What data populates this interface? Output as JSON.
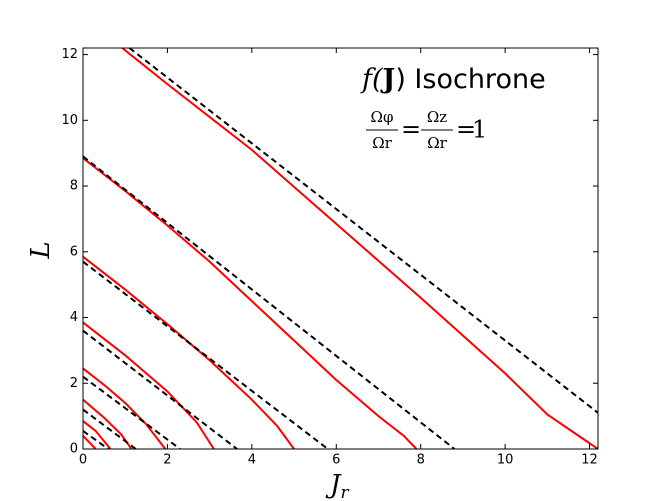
{
  "chart_data": {
    "type": "line",
    "annotation": {
      "title_main": "f(",
      "title_bold": "J",
      "title_rest": ") Isochrone",
      "numerators": [
        "Ωφ",
        "Ωz"
      ],
      "denominators": [
        "Ωr",
        "Ωr"
      ],
      "equals": "=",
      "rhs": "1"
    },
    "xlabel": {
      "main": "J",
      "sub": "r"
    },
    "ylabel": "L",
    "xlim": [
      0,
      12.2
    ],
    "ylim": [
      0,
      12.2
    ],
    "xticks": [
      0,
      2,
      4,
      6,
      8,
      10,
      12
    ],
    "yticks": [
      0,
      2,
      4,
      6,
      8,
      10,
      12
    ],
    "grid": false,
    "series": [
      {
        "color": "#ff0000",
        "style": "solid",
        "x": [
          0.93,
          2,
          4,
          6,
          8,
          10,
          11,
          11.8,
          12.2
        ],
        "values": [
          12.2,
          11.1,
          9.1,
          6.85,
          4.6,
          2.3,
          1.05,
          0.35,
          0
        ]
      },
      {
        "color": "#ff0000",
        "style": "solid",
        "x": [
          0,
          1,
          2,
          3,
          4,
          5,
          6,
          7,
          7.6,
          7.9
        ],
        "values": [
          8.85,
          7.85,
          6.8,
          5.7,
          4.5,
          3.3,
          2.1,
          1.0,
          0.4,
          0
        ]
      },
      {
        "color": "#ff0000",
        "style": "solid",
        "x": [
          0,
          1,
          2,
          3,
          4,
          4.6,
          5.0
        ],
        "values": [
          5.85,
          4.85,
          3.8,
          2.7,
          1.5,
          0.7,
          0
        ]
      },
      {
        "color": "#ff0000",
        "style": "solid",
        "x": [
          0,
          1,
          2,
          2.7,
          3.1
        ],
        "values": [
          3.85,
          2.85,
          1.75,
          0.8,
          0
        ]
      },
      {
        "color": "#ff0000",
        "style": "solid",
        "x": [
          0,
          0.5,
          1,
          1.5,
          1.95
        ],
        "values": [
          2.45,
          1.95,
          1.4,
          0.75,
          0
        ]
      },
      {
        "color": "#ff0000",
        "style": "solid",
        "x": [
          0,
          0.5,
          0.9,
          1.15
        ],
        "values": [
          1.5,
          0.95,
          0.45,
          0
        ]
      },
      {
        "color": "#ff0000",
        "style": "solid",
        "x": [
          0,
          0.3,
          0.65
        ],
        "values": [
          0.85,
          0.55,
          0
        ]
      },
      {
        "color": "#ff0000",
        "style": "solid",
        "x": [
          0,
          0.3
        ],
        "values": [
          0.4,
          0
        ]
      },
      {
        "color": "#000000",
        "style": "dashed",
        "x": [
          1.1,
          12.2
        ],
        "values": [
          12.2,
          1.1
        ]
      },
      {
        "color": "#000000",
        "style": "dashed",
        "x": [
          0,
          8.8
        ],
        "values": [
          8.9,
          0
        ]
      },
      {
        "color": "#000000",
        "style": "dashed",
        "x": [
          0,
          5.8
        ],
        "values": [
          5.7,
          0
        ]
      },
      {
        "color": "#000000",
        "style": "dashed",
        "x": [
          0,
          3.65
        ],
        "values": [
          3.6,
          0
        ]
      },
      {
        "color": "#000000",
        "style": "dashed",
        "x": [
          0,
          2.3
        ],
        "values": [
          2.2,
          0
        ]
      },
      {
        "color": "#000000",
        "style": "dashed",
        "x": [
          0,
          1.25
        ],
        "values": [
          1.2,
          0
        ]
      },
      {
        "color": "#000000",
        "style": "dashed",
        "x": [
          0,
          0.6
        ],
        "values": [
          0.55,
          0
        ]
      }
    ]
  }
}
